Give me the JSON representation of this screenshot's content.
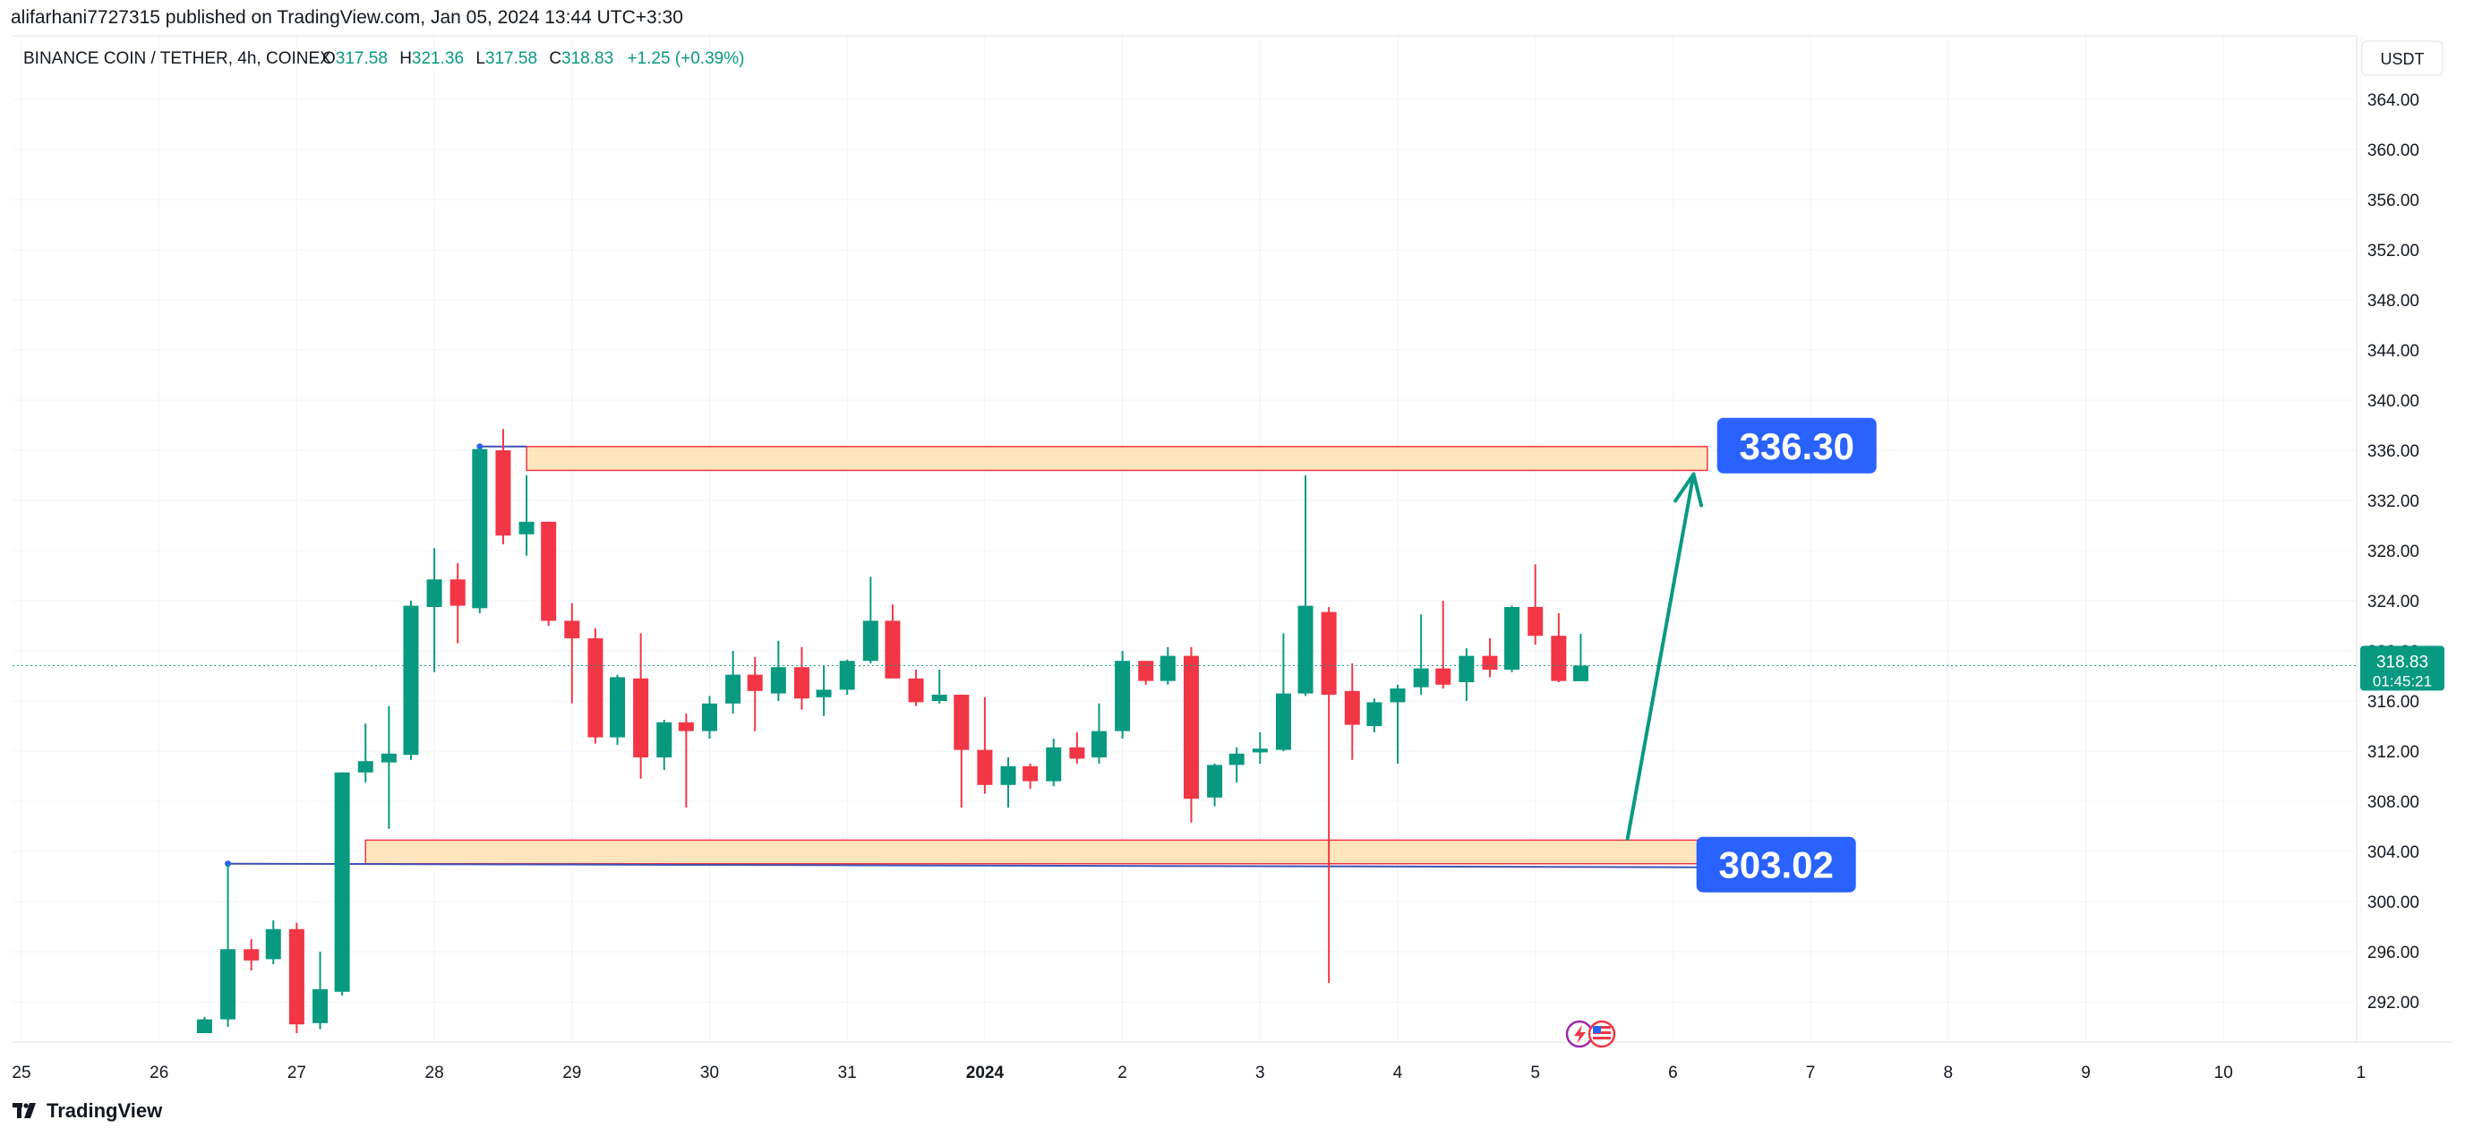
{
  "header": {
    "publish_line": "alifarhani7727315 published on TradingView.com, Jan 05, 2024 13:44 UTC+3:30",
    "symbol_line": "BINANCE COIN / TETHER, 4h, COINEX",
    "ohlc": {
      "o_label": "O",
      "o_value": "317.58",
      "h_label": "H",
      "h_value": "321.36",
      "l_label": "L",
      "l_value": "317.58",
      "c_label": "C",
      "c_value": "318.83",
      "change": "+1.25 (+0.39%)"
    },
    "currency": "USDT"
  },
  "footer": {
    "brand": "TradingView"
  },
  "colors": {
    "up": "#089981",
    "down": "#f23645",
    "grid": "#f0f3fa",
    "box_fill": "#ffe0b2",
    "box_border": "#f23645",
    "label_bg": "#2962ff",
    "trend_line": "#089981",
    "last_price_bg": "#089981"
  },
  "chart_data": {
    "type": "candlestick",
    "timeframe": "4h",
    "ylim": [
      289.5,
      366.5
    ],
    "y_ticks": [
      "364.00",
      "360.00",
      "356.00",
      "352.00",
      "348.00",
      "344.00",
      "340.00",
      "336.00",
      "332.00",
      "328.00",
      "324.00",
      "320.00",
      "316.00",
      "312.00",
      "308.00",
      "304.00",
      "300.00",
      "296.00",
      "292.00"
    ],
    "x_ticks": [
      {
        "label": "25",
        "day": 25
      },
      {
        "label": "26",
        "day": 26
      },
      {
        "label": "27",
        "day": 27
      },
      {
        "label": "28",
        "day": 28
      },
      {
        "label": "29",
        "day": 29
      },
      {
        "label": "30",
        "day": 30
      },
      {
        "label": "31",
        "day": 31
      },
      {
        "label": "2024",
        "day": 32
      },
      {
        "label": "2",
        "day": 33
      },
      {
        "label": "3",
        "day": 34
      },
      {
        "label": "4",
        "day": 35
      },
      {
        "label": "5",
        "day": 36
      },
      {
        "label": "6",
        "day": 37
      },
      {
        "label": "7",
        "day": 38
      },
      {
        "label": "8",
        "day": 39
      },
      {
        "label": "9",
        "day": 40
      },
      {
        "label": "10",
        "day": 41
      },
      {
        "label": "1",
        "day": 42
      }
    ],
    "candles": [
      {
        "day": 26.33,
        "o": 289.5,
        "h": 290.8,
        "l": 289.5,
        "c": 290.6
      },
      {
        "day": 26.5,
        "o": 290.6,
        "h": 303.0,
        "l": 290.0,
        "c": 296.2
      },
      {
        "day": 26.67,
        "o": 296.2,
        "h": 297.0,
        "l": 294.5,
        "c": 295.3
      },
      {
        "day": 26.83,
        "o": 295.4,
        "h": 298.5,
        "l": 295.0,
        "c": 297.8
      },
      {
        "day": 27.0,
        "o": 297.8,
        "h": 298.3,
        "l": 289.5,
        "c": 290.2
      },
      {
        "day": 27.17,
        "o": 290.3,
        "h": 296.0,
        "l": 289.8,
        "c": 293.0
      },
      {
        "day": 27.33,
        "o": 292.8,
        "h": 310.3,
        "l": 292.5,
        "c": 310.3
      },
      {
        "day": 27.5,
        "o": 310.3,
        "h": 314.2,
        "l": 309.5,
        "c": 311.2
      },
      {
        "day": 27.67,
        "o": 311.1,
        "h": 315.6,
        "l": 305.8,
        "c": 311.8
      },
      {
        "day": 27.83,
        "o": 311.7,
        "h": 324.0,
        "l": 311.3,
        "c": 323.6
      },
      {
        "day": 28.0,
        "o": 323.5,
        "h": 328.2,
        "l": 318.3,
        "c": 325.7
      },
      {
        "day": 28.17,
        "o": 325.7,
        "h": 327.0,
        "l": 320.6,
        "c": 323.6
      },
      {
        "day": 28.33,
        "o": 323.4,
        "h": 336.2,
        "l": 323.0,
        "c": 336.1
      },
      {
        "day": 28.5,
        "o": 336.0,
        "h": 337.7,
        "l": 328.5,
        "c": 329.2
      },
      {
        "day": 28.67,
        "o": 329.3,
        "h": 334.0,
        "l": 327.6,
        "c": 330.3
      },
      {
        "day": 28.83,
        "o": 330.3,
        "h": 330.3,
        "l": 322.0,
        "c": 322.4
      },
      {
        "day": 29.0,
        "o": 322.4,
        "h": 323.8,
        "l": 315.8,
        "c": 321.0
      },
      {
        "day": 29.17,
        "o": 321.0,
        "h": 321.8,
        "l": 312.6,
        "c": 313.1
      },
      {
        "day": 29.33,
        "o": 313.1,
        "h": 318.1,
        "l": 312.5,
        "c": 317.9
      },
      {
        "day": 29.5,
        "o": 317.8,
        "h": 321.4,
        "l": 309.8,
        "c": 311.5
      },
      {
        "day": 29.67,
        "o": 311.5,
        "h": 314.5,
        "l": 310.5,
        "c": 314.3
      },
      {
        "day": 29.83,
        "o": 314.3,
        "h": 315.0,
        "l": 307.5,
        "c": 313.6
      },
      {
        "day": 30.0,
        "o": 313.6,
        "h": 316.4,
        "l": 313.0,
        "c": 315.8
      },
      {
        "day": 30.17,
        "o": 315.8,
        "h": 320.0,
        "l": 315.0,
        "c": 318.1
      },
      {
        "day": 30.33,
        "o": 318.1,
        "h": 319.5,
        "l": 313.6,
        "c": 316.8
      },
      {
        "day": 30.5,
        "o": 316.6,
        "h": 320.8,
        "l": 316.0,
        "c": 318.7
      },
      {
        "day": 30.67,
        "o": 318.7,
        "h": 320.3,
        "l": 315.3,
        "c": 316.2
      },
      {
        "day": 30.83,
        "o": 316.3,
        "h": 318.8,
        "l": 314.8,
        "c": 316.9
      },
      {
        "day": 31.0,
        "o": 316.9,
        "h": 319.3,
        "l": 316.5,
        "c": 319.2
      },
      {
        "day": 31.17,
        "o": 319.2,
        "h": 325.9,
        "l": 319.0,
        "c": 322.4
      },
      {
        "day": 31.33,
        "o": 322.4,
        "h": 323.7,
        "l": 317.8,
        "c": 317.8
      },
      {
        "day": 31.5,
        "o": 317.8,
        "h": 318.5,
        "l": 315.6,
        "c": 315.9
      },
      {
        "day": 31.67,
        "o": 316.0,
        "h": 318.5,
        "l": 315.8,
        "c": 316.5
      },
      {
        "day": 31.83,
        "o": 316.5,
        "h": 316.5,
        "l": 307.5,
        "c": 312.1
      },
      {
        "day": 32.0,
        "o": 312.1,
        "h": 316.3,
        "l": 308.6,
        "c": 309.3
      },
      {
        "day": 32.17,
        "o": 309.3,
        "h": 311.5,
        "l": 307.5,
        "c": 310.8
      },
      {
        "day": 32.33,
        "o": 310.8,
        "h": 311.0,
        "l": 309.0,
        "c": 309.6
      },
      {
        "day": 32.5,
        "o": 309.6,
        "h": 313.0,
        "l": 309.2,
        "c": 312.3
      },
      {
        "day": 32.67,
        "o": 312.3,
        "h": 313.5,
        "l": 311.0,
        "c": 311.4
      },
      {
        "day": 32.83,
        "o": 311.5,
        "h": 315.8,
        "l": 311.0,
        "c": 313.6
      },
      {
        "day": 33.0,
        "o": 313.6,
        "h": 320.0,
        "l": 313.0,
        "c": 319.2
      },
      {
        "day": 33.17,
        "o": 319.2,
        "h": 319.2,
        "l": 317.3,
        "c": 317.6
      },
      {
        "day": 33.33,
        "o": 317.6,
        "h": 320.3,
        "l": 317.3,
        "c": 319.6
      },
      {
        "day": 33.5,
        "o": 319.6,
        "h": 320.3,
        "l": 306.3,
        "c": 308.2
      },
      {
        "day": 33.67,
        "o": 308.3,
        "h": 311.0,
        "l": 307.6,
        "c": 310.9
      },
      {
        "day": 33.83,
        "o": 310.9,
        "h": 312.3,
        "l": 309.5,
        "c": 311.8
      },
      {
        "day": 34.0,
        "o": 311.9,
        "h": 313.5,
        "l": 311.0,
        "c": 312.2
      },
      {
        "day": 34.17,
        "o": 312.1,
        "h": 321.4,
        "l": 312.0,
        "c": 316.6
      },
      {
        "day": 34.33,
        "o": 316.6,
        "h": 334.0,
        "l": 316.4,
        "c": 323.6
      },
      {
        "day": 34.5,
        "o": 323.1,
        "h": 323.5,
        "l": 293.5,
        "c": 316.5
      },
      {
        "day": 34.67,
        "o": 316.8,
        "h": 319.0,
        "l": 311.3,
        "c": 314.1
      },
      {
        "day": 34.83,
        "o": 314.0,
        "h": 316.2,
        "l": 313.5,
        "c": 315.9
      },
      {
        "day": 35.0,
        "o": 315.9,
        "h": 317.3,
        "l": 311.0,
        "c": 317.0
      },
      {
        "day": 35.17,
        "o": 317.1,
        "h": 322.9,
        "l": 316.5,
        "c": 318.6
      },
      {
        "day": 35.33,
        "o": 318.6,
        "h": 324.0,
        "l": 317.0,
        "c": 317.3
      },
      {
        "day": 35.5,
        "o": 317.5,
        "h": 320.2,
        "l": 316.0,
        "c": 319.6
      },
      {
        "day": 35.67,
        "o": 319.6,
        "h": 321.0,
        "l": 317.9,
        "c": 318.5
      },
      {
        "day": 35.83,
        "o": 318.5,
        "h": 323.6,
        "l": 318.3,
        "c": 323.5
      },
      {
        "day": 36.0,
        "o": 323.5,
        "h": 326.9,
        "l": 320.5,
        "c": 321.2
      },
      {
        "day": 36.17,
        "o": 321.2,
        "h": 323.0,
        "l": 317.5,
        "c": 317.6
      },
      {
        "day": 36.33,
        "o": 317.58,
        "h": 321.36,
        "l": 317.58,
        "c": 318.83
      }
    ],
    "last_price": {
      "value": 318.83,
      "label": "318.83",
      "countdown": "01:45:21"
    },
    "zones": [
      {
        "from_day": 28.67,
        "to_day": 37.25,
        "top": 336.3,
        "bottom": 334.4,
        "price_label": "336.30",
        "label_day": 37.9
      },
      {
        "from_day": 27.5,
        "to_day": 37.2,
        "top": 304.9,
        "bottom": 303.02,
        "price_label": "303.02",
        "label_day": 37.75
      }
    ],
    "horizontal_rays": [
      {
        "from_day": 26.5,
        "to_day": 37.2,
        "value": 303.02
      },
      {
        "from_day": 28.33,
        "to_day": 28.67,
        "value": 336.3
      }
    ],
    "trend_arrow": {
      "from_day": 36.67,
      "from_value": 305.0,
      "to_day": 37.15,
      "to_value": 334.1
    },
    "event_icons": [
      {
        "day": 36.33,
        "names": [
          "flash-icon",
          "us-flag-icon"
        ]
      }
    ]
  }
}
